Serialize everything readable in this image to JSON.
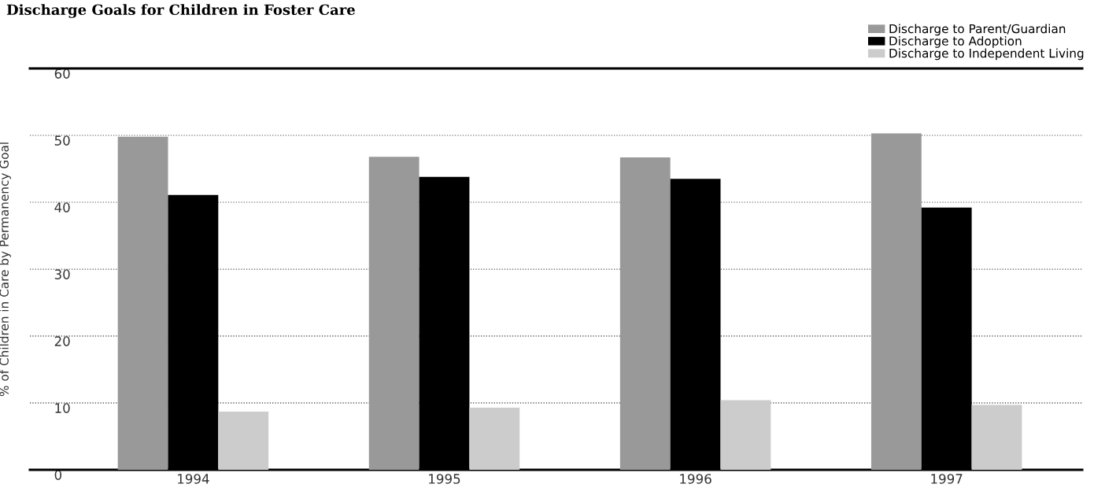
{
  "chart_data": {
    "type": "bar",
    "title": "Discharge Goals for Children in Foster Care",
    "ylabel": "% of Children in Care by Permanency Goal",
    "categories": [
      "1994",
      "1995",
      "1996",
      "1997"
    ],
    "series": [
      {
        "name": "Discharge to Parent/Guardian",
        "color": "#999999",
        "values": [
          49.8,
          46.8,
          46.7,
          50.3
        ]
      },
      {
        "name": "Discharge to Adoption",
        "color": "#000000",
        "values": [
          41.1,
          43.8,
          43.5,
          39.2
        ]
      },
      {
        "name": "Discharge to Independent Living",
        "color": "#cccccc",
        "values": [
          8.7,
          9.3,
          10.4,
          9.7
        ]
      }
    ],
    "ylim": [
      0,
      60
    ],
    "yticks": [
      0,
      10,
      20,
      30,
      40,
      50,
      60
    ],
    "grid": "y",
    "legend": "top right"
  }
}
